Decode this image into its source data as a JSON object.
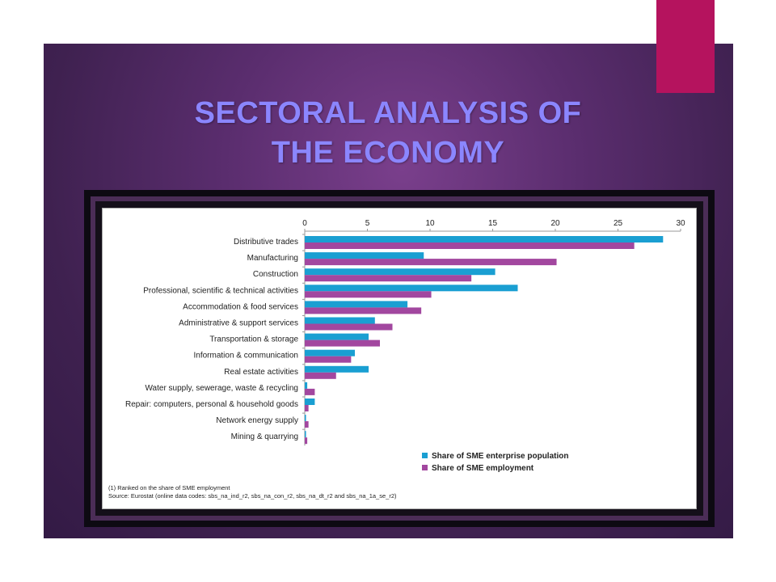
{
  "slide": {
    "title_line1": "SECTORAL ANALYSIS OF",
    "title_line2": "THE ECONOMY",
    "accent_color": "#b5135e",
    "title_color": "#8b86ff"
  },
  "chart_data": {
    "type": "bar",
    "orientation": "horizontal",
    "x_axis_position": "top",
    "xlim": [
      0,
      30
    ],
    "x_ticks": [
      0,
      5,
      10,
      15,
      20,
      25,
      30
    ],
    "grid": false,
    "legend_position": "bottom-right",
    "categories": [
      "Distributive trades",
      "Manufacturing",
      "Construction",
      "Professional, scientific & technical activities",
      "Accommodation & food services",
      "Administrative & support services",
      "Transportation & storage",
      "Information & communication",
      "Real estate activities",
      "Water supply, sewerage, waste & recycling",
      "Repair: computers, personal & household goods",
      "Network energy supply",
      "Mining & quarrying"
    ],
    "series": [
      {
        "name": "Share of SME enterprise population",
        "color": "#1a9fd2",
        "values": [
          28.6,
          9.5,
          15.2,
          17.0,
          8.2,
          5.6,
          5.1,
          4.0,
          5.1,
          0.2,
          0.8,
          0.1,
          0.1
        ]
      },
      {
        "name": "Share of SME employment",
        "color": "#a2479f",
        "values": [
          26.3,
          20.1,
          13.3,
          10.1,
          9.3,
          7.0,
          6.0,
          3.7,
          2.5,
          0.8,
          0.3,
          0.3,
          0.2
        ]
      }
    ],
    "notes": [
      "(1) Ranked on the share of SME employment",
      "Source: Eurostat (online data codes: sbs_na_ind_r2, sbs_na_con_r2, sbs_na_dt_r2 and sbs_na_1a_se_r2)"
    ]
  }
}
